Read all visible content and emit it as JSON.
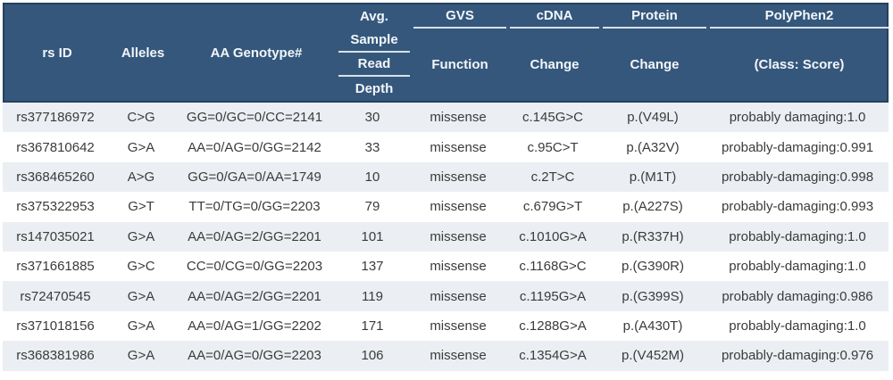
{
  "colors": {
    "header_bg": "#35577C",
    "header_border": "#24425F",
    "header_text": "#F2F6F9",
    "divider_line": "#D8E1E9",
    "row_stripe": "#EBEEF2",
    "row_white": "#FFFFFF",
    "body_text": "#3B3B3B"
  },
  "header": {
    "rs_id": "rs ID",
    "alleles": "Alleles",
    "aa_genotype": "AA Genotype#",
    "depth_lines": [
      "Avg.",
      "Sample",
      "Read",
      "Depth"
    ],
    "groups": [
      {
        "top": "GVS",
        "bottom": "Function"
      },
      {
        "top": "cDNA",
        "bottom": "Change"
      },
      {
        "top": "Protein",
        "bottom": "Change"
      },
      {
        "top": "PolyPhen2",
        "bottom": "(Class: Score)"
      }
    ]
  },
  "chart_data": {
    "type": "table",
    "title": "",
    "columns": [
      "rs ID",
      "Alleles",
      "AA Genotype#",
      "Avg. Sample Read Depth",
      "GVS Function",
      "cDNA Change",
      "Protein Change",
      "PolyPhen2 (Class: Score)"
    ],
    "rows": [
      [
        "rs377186972",
        "C>G",
        "GG=0/GC=0/CC=2141",
        "30",
        "missense",
        "c.145G>C",
        "p.(V49L)",
        "probably damaging:1.0"
      ],
      [
        "rs367810642",
        "G>A",
        "AA=0/AG=0/GG=2142",
        "33",
        "missense",
        "c.95C>T",
        "p.(A32V)",
        "probably-damaging:0.991"
      ],
      [
        "rs368465260",
        "A>G",
        "GG=0/GA=0/AA=1749",
        "10",
        "missense",
        "c.2T>C",
        "p.(M1T)",
        "probably-damaging:0.998"
      ],
      [
        "rs375322953",
        "G>T",
        "TT=0/TG=0/GG=2203",
        "79",
        "missense",
        "c.679G>T",
        "p.(A227S)",
        "probably-damaging:0.993"
      ],
      [
        "rs147035021",
        "G>A",
        "AA=0/AG=2/GG=2201",
        "101",
        "missense",
        "c.1010G>A",
        "p.(R337H)",
        "probably-damaging:1.0"
      ],
      [
        "rs371661885",
        "G>C",
        "CC=0/CG=0/GG=2203",
        "137",
        "missense",
        "c.1168G>C",
        "p.(G390R)",
        "probably-damaging:1.0"
      ],
      [
        "rs72470545",
        "G>A",
        "AA=0/AG=2/GG=2201",
        "119",
        "missense",
        "c.1195G>A",
        "p.(G399S)",
        "probably damaging:0.986"
      ],
      [
        "rs371018156",
        "G>A",
        "AA=0/AG=1/GG=2202",
        "171",
        "missense",
        "c.1288G>A",
        "p.(A430T)",
        "probably-damaging:1.0"
      ],
      [
        "rs368381986",
        "G>A",
        "AA=0/AG=0/GG=2203",
        "106",
        "missense",
        "c.1354G>A",
        "p.(V452M)",
        "probably-damaging:0.976"
      ]
    ]
  }
}
